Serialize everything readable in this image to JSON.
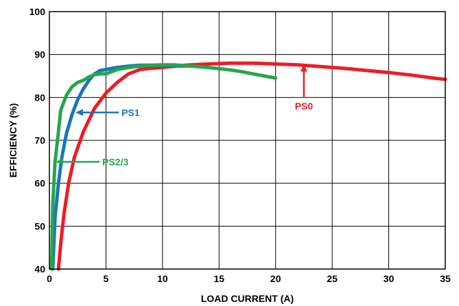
{
  "chart_data": {
    "type": "line",
    "title": "",
    "xlabel": "LOAD CURRENT (A)",
    "ylabel": "EFFICIENCY (%)",
    "xlim": [
      0,
      35
    ],
    "ylim": [
      40,
      100
    ],
    "xticks": [
      0,
      5,
      10,
      15,
      20,
      25,
      30,
      35
    ],
    "yticks": [
      40,
      50,
      60,
      70,
      80,
      90,
      100
    ],
    "grid": true,
    "legend": "none",
    "series": [
      {
        "name": "PS0",
        "color": "#ee1c24",
        "x": [
          0.8,
          1.0,
          1.3,
          1.7,
          2.2,
          3.0,
          4.0,
          5.0,
          6.0,
          7.0,
          8.0,
          9.0,
          10.0,
          12.0,
          14.0,
          16.0,
          18.0,
          20.0,
          22.0,
          24.0,
          26.0,
          28.0,
          30.0,
          32.0,
          34.0,
          35.0
        ],
        "y": [
          40.0,
          46.0,
          53.0,
          60.0,
          66.0,
          72.0,
          77.5,
          81.0,
          83.5,
          85.5,
          86.5,
          86.8,
          87.0,
          87.5,
          87.8,
          88.0,
          88.0,
          87.8,
          87.6,
          87.2,
          86.8,
          86.3,
          85.8,
          85.2,
          84.5,
          84.2
        ]
      },
      {
        "name": "PS1",
        "color": "#1b75bc",
        "x": [
          0.3,
          0.5,
          0.8,
          1.1,
          1.5,
          2.0,
          2.5,
          3.0,
          3.5,
          4.0,
          4.5,
          5.0,
          6.0,
          7.0,
          8.0,
          9.0,
          10.0,
          11.0,
          12.0
        ],
        "y": [
          40.0,
          52.0,
          60.0,
          66.0,
          71.5,
          76.0,
          79.5,
          82.0,
          84.0,
          85.5,
          86.3,
          86.5,
          87.0,
          87.3,
          87.5,
          87.5,
          87.5,
          87.4,
          87.3
        ]
      },
      {
        "name": "PS2/3",
        "color": "#22a84b",
        "x": [
          0.2,
          0.3,
          0.5,
          0.8,
          1.0,
          1.5,
          2.0,
          2.5,
          3.0,
          3.5,
          4.0,
          4.5,
          5.0,
          5.5,
          6.0,
          7.0,
          8.0,
          9.0,
          10.0,
          11.0,
          12.0,
          13.0,
          14.0,
          15.0,
          16.0,
          17.0,
          18.0,
          19.0,
          20.0
        ],
        "y": [
          40.0,
          55.0,
          65.0,
          72.0,
          77.0,
          80.5,
          82.5,
          83.5,
          84.0,
          84.8,
          85.3,
          85.5,
          85.5,
          86.0,
          86.5,
          87.0,
          87.3,
          87.5,
          87.6,
          87.6,
          87.4,
          87.2,
          87.0,
          86.7,
          86.4,
          86.0,
          85.5,
          85.0,
          84.5
        ]
      }
    ],
    "annotations": [
      {
        "series": "PS0",
        "text": "PS0",
        "arrow_to": [
          22.5,
          87.8
        ],
        "text_at": [
          22.5,
          78.0
        ]
      },
      {
        "series": "PS1",
        "text": "PS1",
        "arrow_to": [
          2.3,
          76.5
        ],
        "text_at": [
          6.5,
          76.5
        ]
      },
      {
        "series": "PS2/3",
        "text": "PS2/3",
        "arrow_to": [
          0.55,
          65.0
        ],
        "text_at": [
          4.8,
          65.0
        ]
      }
    ]
  }
}
